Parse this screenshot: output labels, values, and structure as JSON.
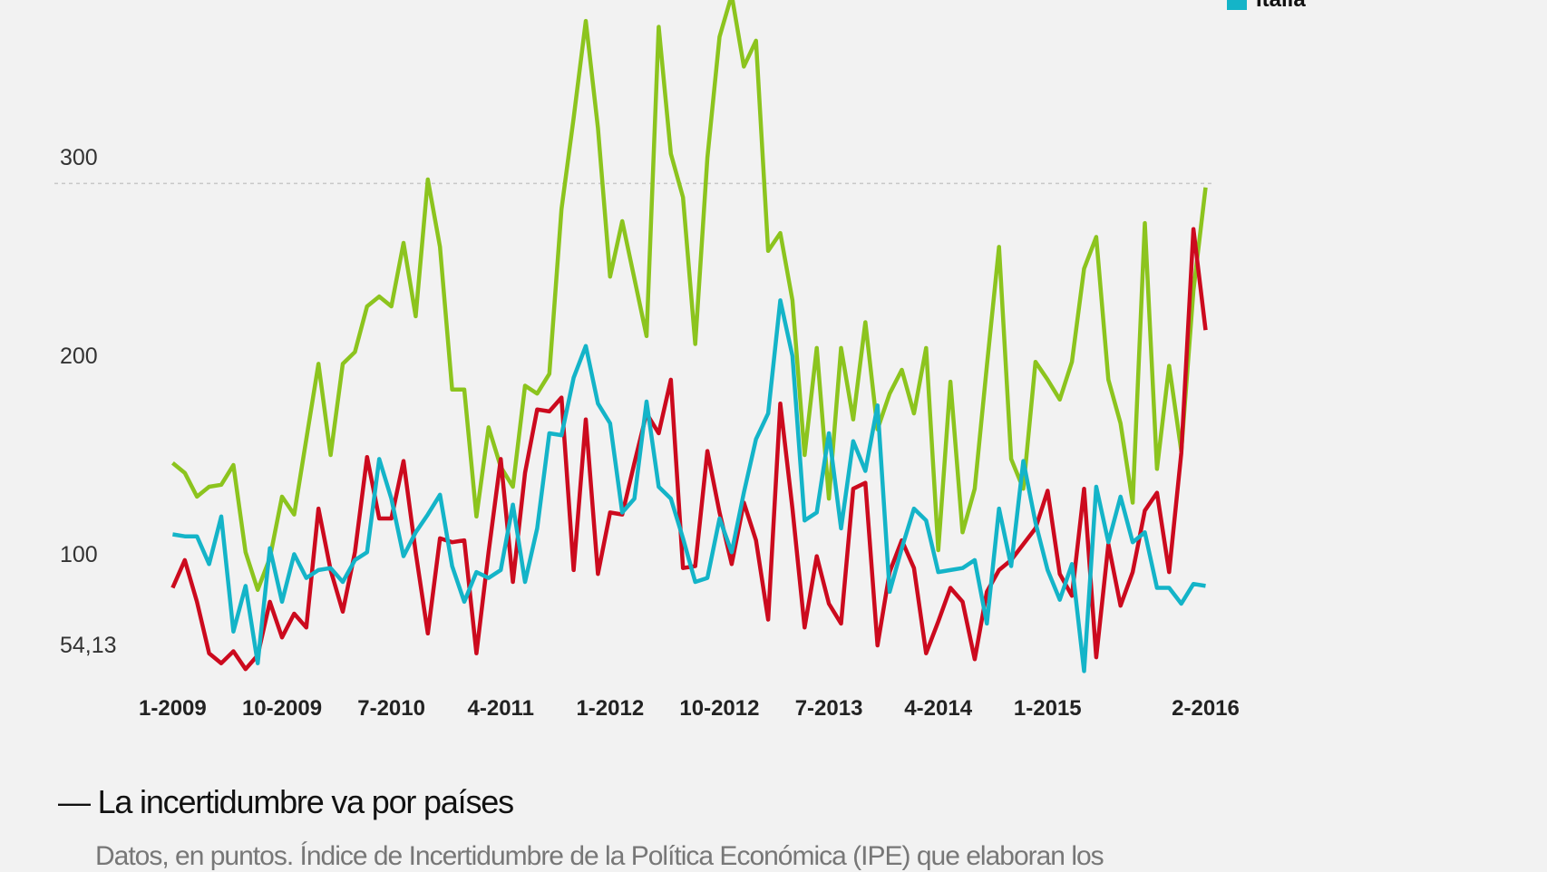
{
  "chart_data": {
    "type": "line",
    "title": "— La incertidumbre va por países",
    "subtitle": "Datos, en puntos. Índice de Incertidumbre de la Política Económica (IPE) que elaboran los",
    "x_start": "1-2009",
    "x_end": "2-2016",
    "x_tick_labels": [
      "1-2009",
      "10-2009",
      "7-2010",
      "4-2011",
      "1-2012",
      "10-2012",
      "7-2013",
      "4-2014",
      "1-2015",
      "2-2016"
    ],
    "x_tick_months": [
      "2009-01",
      "2009-10",
      "2010-07",
      "2011-04",
      "2012-01",
      "2012-10",
      "2013-07",
      "2014-04",
      "2015-01",
      "2016-02"
    ],
    "y_tick_labels": [
      {
        "value": 300,
        "label": "300"
      },
      {
        "value": 200,
        "label": "200"
      },
      {
        "value": 100,
        "label": "100"
      },
      {
        "value": 54.13,
        "label": "54,13"
      }
    ],
    "gridlines": [
      300
    ],
    "ylim": [
      54.13,
      400
    ],
    "legend": [
      {
        "label": "Italia",
        "color": "#14b4c8"
      }
    ],
    "legend_position": "top-right",
    "series": [
      {
        "color": "#8cc41e",
        "values": [
          159,
          154,
          142,
          147,
          148,
          158,
          114,
          95,
          111,
          142,
          133,
          171,
          209,
          163,
          209,
          215,
          238,
          243,
          238,
          270,
          233,
          302,
          268,
          196,
          196,
          132,
          177,
          157,
          147,
          198,
          194,
          204,
          287,
          333,
          382,
          328,
          253,
          281,
          252,
          223,
          379,
          315,
          293,
          219,
          313,
          374,
          395,
          359,
          372,
          266,
          275,
          241,
          163,
          217,
          141,
          217,
          181,
          230,
          176,
          194,
          206,
          184,
          217,
          115,
          200,
          124,
          146,
          208,
          268,
          161,
          146,
          210,
          201,
          191,
          210,
          257,
          273,
          201,
          179,
          139,
          280,
          156,
          208,
          165,
          246,
          298
        ]
      },
      {
        "color": "#cc0a1e",
        "values": [
          96,
          110,
          89,
          63,
          58,
          64,
          55,
          62,
          89,
          71,
          83,
          76,
          136,
          105,
          84,
          114,
          162,
          131,
          131,
          160,
          114,
          73,
          121,
          119,
          120,
          63,
          114,
          161,
          99,
          154,
          186,
          185,
          192,
          105,
          181,
          103,
          134,
          133,
          159,
          184,
          174,
          201,
          106,
          107,
          165,
          134,
          108,
          139,
          120,
          80,
          189,
          136,
          76,
          112,
          88,
          78,
          146,
          149,
          67,
          104,
          120,
          106,
          63,
          79,
          96,
          89,
          60,
          94,
          105,
          110,
          118,
          126,
          145,
          103,
          92,
          146,
          61,
          118,
          87,
          104,
          135,
          144,
          104,
          164,
          277,
          226
        ]
      },
      {
        "name": "Italia",
        "color": "#14b4c8",
        "values": [
          123,
          122,
          122,
          108,
          132,
          74,
          97,
          58,
          116,
          89,
          113,
          101,
          105,
          106,
          99,
          110,
          114,
          161,
          141,
          112,
          124,
          133,
          143,
          107,
          89,
          104,
          101,
          105,
          138,
          99,
          126,
          174,
          173,
          202,
          218,
          189,
          179,
          134,
          141,
          190,
          147,
          141,
          121,
          99,
          101,
          131,
          114,
          144,
          171,
          184,
          241,
          213,
          130,
          134,
          174,
          126,
          170,
          155,
          188,
          94,
          116,
          136,
          130,
          104,
          105,
          106,
          110,
          78,
          136,
          107,
          160,
          129,
          105,
          90,
          108,
          54,
          147,
          119,
          142,
          119,
          124,
          96,
          96,
          88,
          98,
          97
        ]
      }
    ]
  }
}
